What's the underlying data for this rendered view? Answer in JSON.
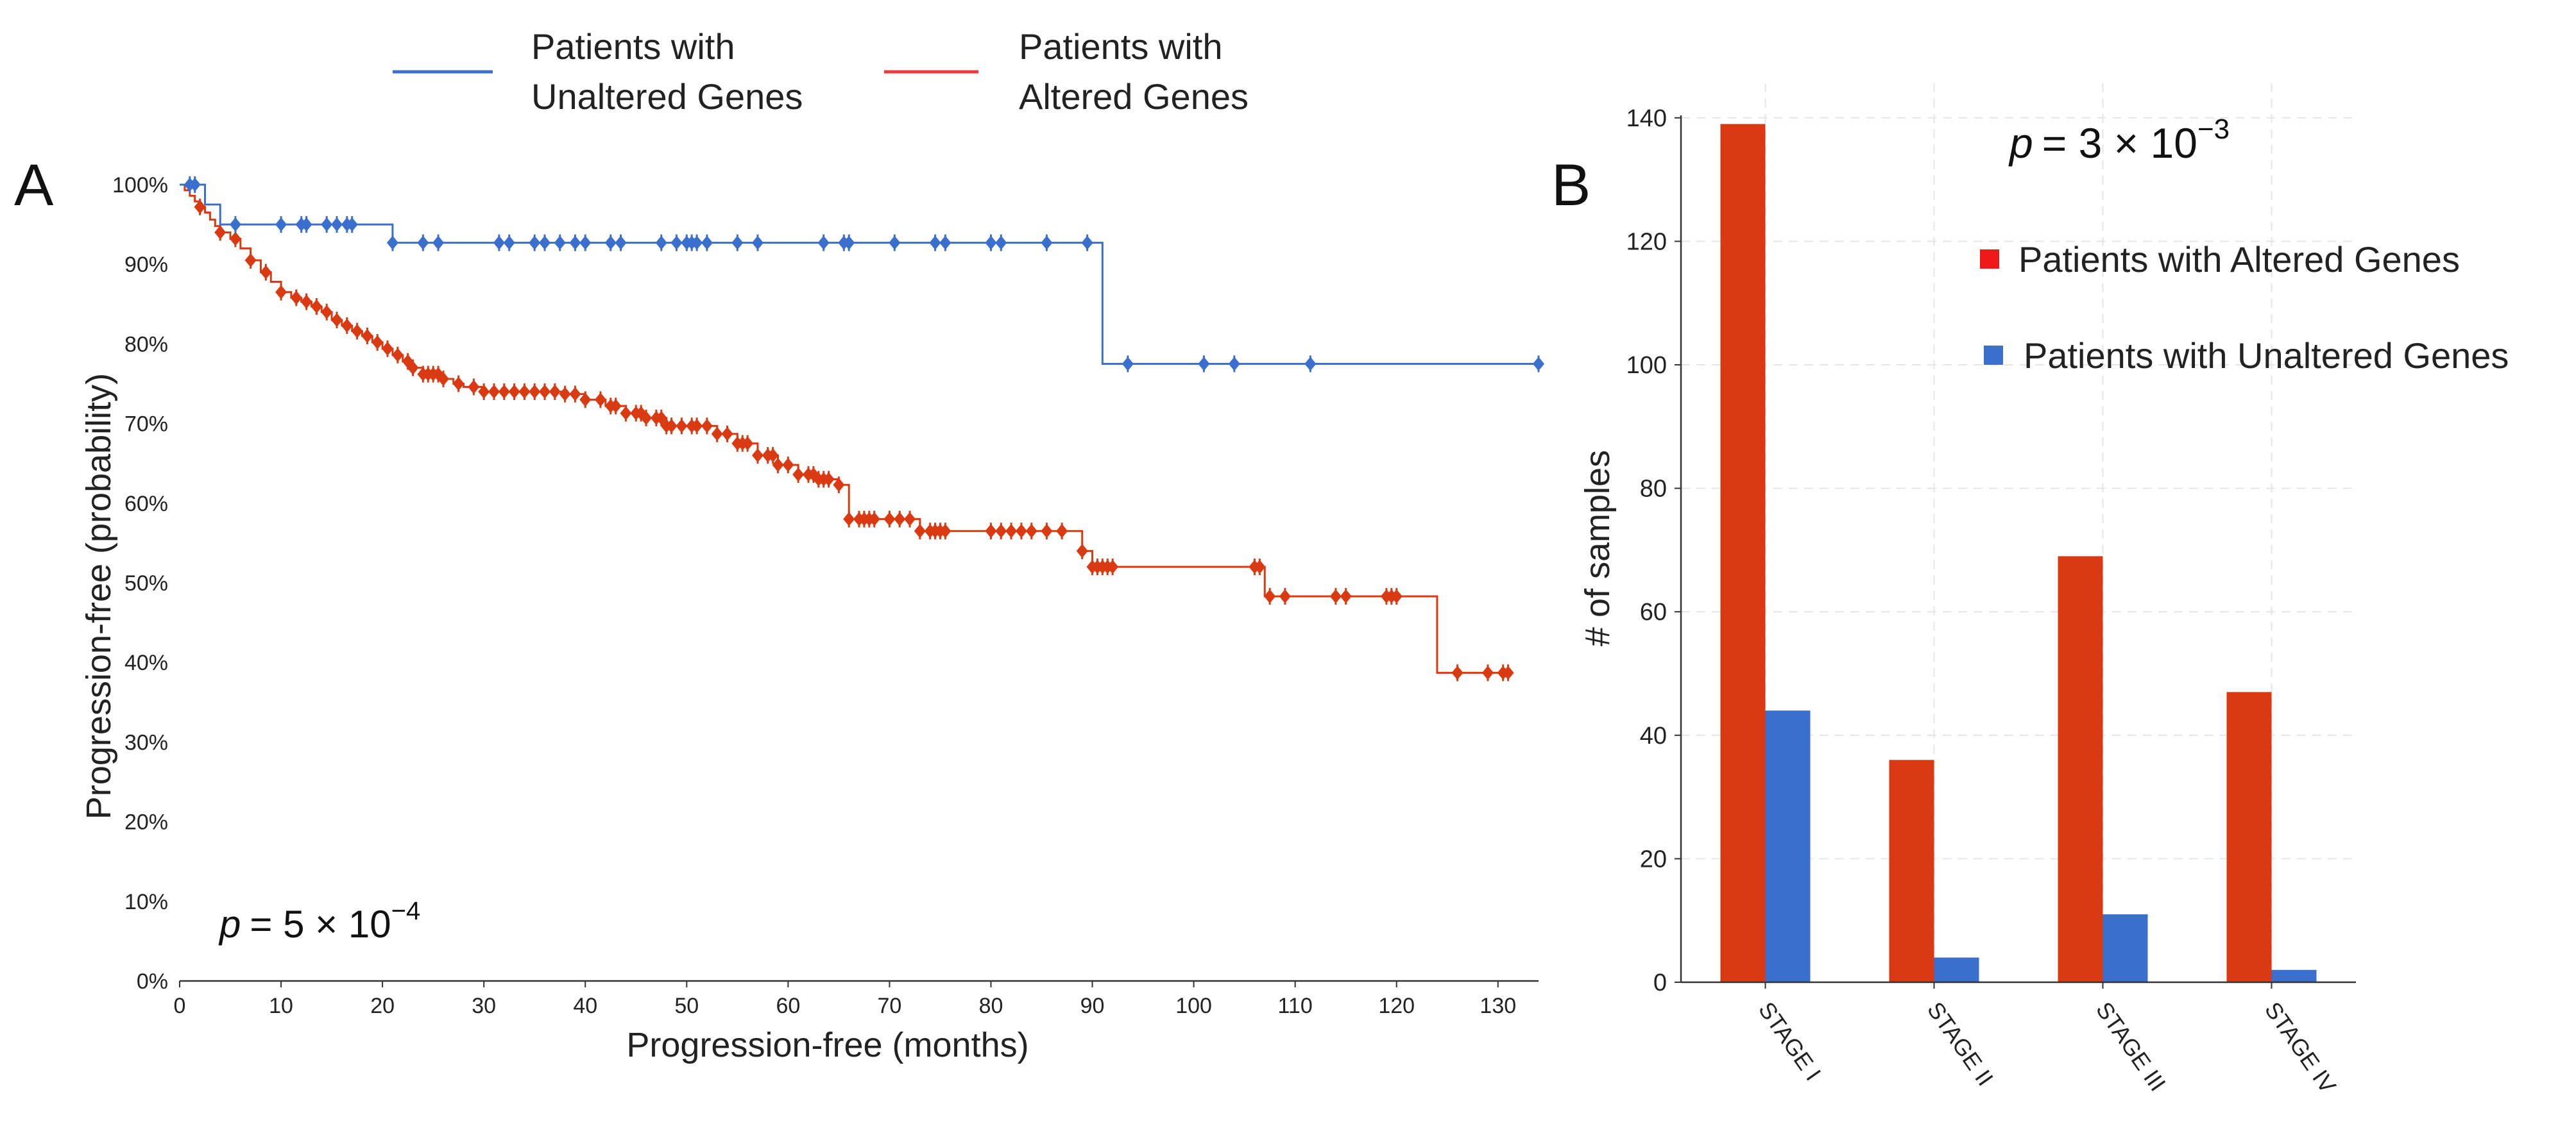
{
  "colors": {
    "altered": "#D93A12",
    "unaltered": "#3A6FCE",
    "altered_legend": "#EE1A1A"
  },
  "legend_top": {
    "unaltered_line1": "Patients with",
    "unaltered_line2": "Unaltered Genes",
    "altered_line1": "Patients with",
    "altered_line2": "Altered Genes"
  },
  "chart_data": [
    {
      "panel": "A",
      "type": "line",
      "subtype": "kaplan-meier",
      "xlabel": "Progression-free (months)",
      "ylabel": "Progression-free (probability)",
      "annotation_p_symbol": "p",
      "annotation_p_rest": "= 5 × 10",
      "annotation_p_exp": "−4",
      "xlim": [
        0,
        134
      ],
      "ylim": [
        0,
        100
      ],
      "x_ticks": [
        "0",
        "10",
        "20",
        "30",
        "40",
        "50",
        "60",
        "70",
        "80",
        "90",
        "100",
        "110",
        "120",
        "130"
      ],
      "y_ticks": [
        "0%",
        "10%",
        "20%",
        "30%",
        "40%",
        "50%",
        "60%",
        "70%",
        "80%",
        "90%",
        "100%"
      ],
      "series": [
        {
          "name": "Patients with Unaltered Genes",
          "steps": [
            [
              0,
              100
            ],
            [
              1.2,
              100
            ],
            [
              2.5,
              97.5
            ],
            [
              4,
              95
            ],
            [
              21,
              95
            ],
            [
              21,
              92.7
            ],
            [
              91,
              92.7
            ],
            [
              91,
              77.5
            ],
            [
              134,
              77.5
            ]
          ],
          "censor_x": [
            1,
            1.5,
            5.5,
            10,
            12,
            12.5,
            14.5,
            15.5,
            16.5,
            17,
            21,
            24,
            25.5,
            31.5,
            32.5,
            35,
            36,
            37.5,
            39,
            40,
            42.5,
            43.5,
            47.5,
            49,
            50,
            50.5,
            51,
            52,
            55,
            57,
            63.5,
            65.5,
            66,
            70.5,
            74.5,
            75.5,
            80,
            81,
            85.5,
            89.5,
            93.5,
            101,
            104,
            111.5,
            134
          ]
        },
        {
          "name": "Patients with Altered Genes",
          "steps": [
            [
              0,
              100
            ],
            [
              0.5,
              99.3
            ],
            [
              1,
              98.6
            ],
            [
              1.5,
              97.9
            ],
            [
              2,
              97.2
            ],
            [
              2.5,
              96.5
            ],
            [
              3,
              95.6
            ],
            [
              3.5,
              94.8
            ],
            [
              4,
              94
            ],
            [
              5,
              93.2
            ],
            [
              6,
              92
            ],
            [
              7,
              90.5
            ],
            [
              8,
              89
            ],
            [
              9,
              87.8
            ],
            [
              10,
              86.5
            ],
            [
              11,
              85.8
            ],
            [
              12,
              85.3
            ],
            [
              13,
              84.7
            ],
            [
              14,
              84
            ],
            [
              15,
              83
            ],
            [
              16,
              82.3
            ],
            [
              17,
              81.6
            ],
            [
              18,
              81
            ],
            [
              19,
              80.2
            ],
            [
              20,
              79.4
            ],
            [
              21,
              78.6
            ],
            [
              22,
              77.8
            ],
            [
              23,
              77
            ],
            [
              24,
              76.2
            ],
            [
              26,
              75.6
            ],
            [
              27,
              75
            ],
            [
              28,
              74.6
            ],
            [
              30,
              74
            ],
            [
              38,
              73.7
            ],
            [
              40,
              73
            ],
            [
              42,
              72.2
            ],
            [
              44,
              71.3
            ],
            [
              46,
              70.7
            ],
            [
              48,
              69.7
            ],
            [
              53,
              68.7
            ],
            [
              55,
              67.5
            ],
            [
              57,
              66
            ],
            [
              59,
              64.8
            ],
            [
              61,
              63.6
            ],
            [
              63,
              63
            ],
            [
              65,
              62.3
            ],
            [
              66,
              58
            ],
            [
              72,
              58
            ],
            [
              73,
              56.5
            ],
            [
              88,
              56.5
            ],
            [
              89,
              54
            ],
            [
              90,
              52
            ],
            [
              106,
              52
            ],
            [
              107,
              48.3
            ],
            [
              124,
              48.3
            ],
            [
              124,
              38.7
            ],
            [
              131,
              38.7
            ]
          ],
          "censor_x": [
            2,
            4,
            5.5,
            7,
            8.5,
            10,
            11.5,
            12.5,
            13.5,
            14.5,
            15.5,
            16.5,
            17.5,
            18.5,
            19.5,
            20.5,
            21.5,
            22.5,
            23,
            24,
            24.5,
            25,
            25.5,
            26,
            27.5,
            29,
            30,
            31,
            32,
            33,
            34,
            35,
            36,
            37,
            38,
            39,
            40,
            41.5,
            42.5,
            43,
            44,
            45,
            45.5,
            46,
            47,
            47.5,
            48,
            48.5,
            49.5,
            50.5,
            51,
            52,
            53,
            54,
            55,
            55.5,
            56,
            57,
            58,
            58.5,
            59,
            60,
            61,
            62,
            62.5,
            63,
            63.5,
            64,
            65,
            66,
            67,
            67.5,
            68,
            68.5,
            70,
            71,
            72,
            73,
            74,
            74.5,
            75,
            75.5,
            80,
            81,
            82,
            83,
            84,
            85.5,
            87,
            89,
            90,
            90.5,
            91,
            91.5,
            92,
            106,
            106.5,
            107.5,
            109,
            114,
            115,
            119,
            119.5,
            120,
            126,
            129,
            130.5,
            131
          ]
        }
      ]
    },
    {
      "panel": "B",
      "type": "bar",
      "ylabel": "# of samples",
      "xlabel": "",
      "annotation_p_symbol": "p",
      "annotation_p_rest": "= 3 × 10",
      "annotation_p_exp": "−3",
      "categories": [
        "STAGE I",
        "STAGE II",
        "STAGE III",
        "STAGE IV"
      ],
      "ylim": [
        0,
        145
      ],
      "y_ticks": [
        "0",
        "20",
        "40",
        "60",
        "80",
        "100",
        "120",
        "140"
      ],
      "grid": true,
      "series": [
        {
          "name": "Patients with Altered Genes",
          "values": [
            139,
            36,
            69,
            47
          ]
        },
        {
          "name": "Patients with Unaltered Genes",
          "values": [
            44,
            4,
            11,
            2
          ]
        }
      ]
    }
  ]
}
